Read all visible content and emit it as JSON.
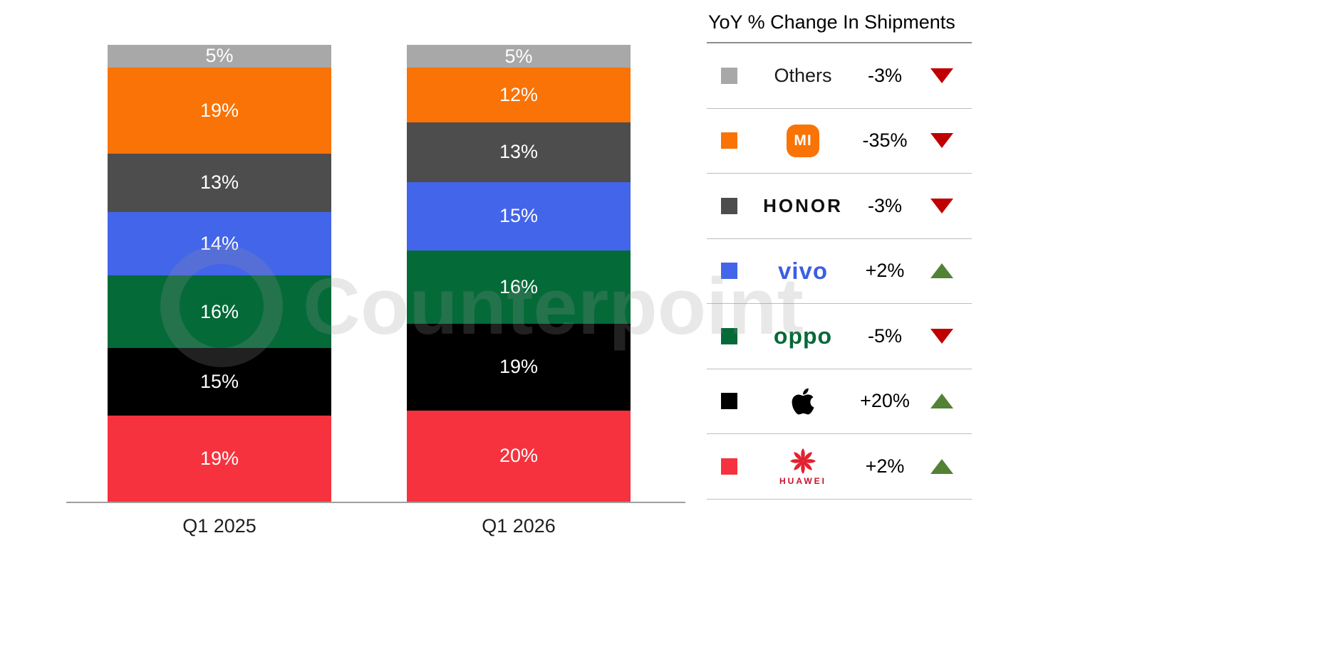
{
  "chart_data": {
    "type": "bar",
    "stacked": true,
    "title": "",
    "categories": [
      "Q1 2025",
      "Q1 2026"
    ],
    "series": [
      {
        "name": "HUAWEI",
        "color": "#f6323e",
        "values": [
          19,
          20
        ]
      },
      {
        "name": "Apple",
        "color": "#000000",
        "values": [
          15,
          19
        ]
      },
      {
        "name": "OPPO",
        "color": "#046a38",
        "values": [
          16,
          16
        ]
      },
      {
        "name": "vivo",
        "color": "#4365e9",
        "values": [
          14,
          15
        ]
      },
      {
        "name": "HONOR",
        "color": "#4d4d4d",
        "values": [
          13,
          13
        ]
      },
      {
        "name": "Xiaomi",
        "color": "#f97306",
        "values": [
          19,
          12
        ]
      },
      {
        "name": "Others",
        "color": "#a8a8a8",
        "values": [
          5,
          5
        ]
      }
    ],
    "value_suffix": "%",
    "legend_position": "right",
    "legend_title": "YoY % Change In Shipments",
    "legend": [
      {
        "brand": "Others",
        "logo": "others",
        "color": "#a8a8a8",
        "change": "-3%",
        "direction": "down"
      },
      {
        "brand": "Mi",
        "logo": "mi",
        "color": "#f97306",
        "change": "-35%",
        "direction": "down"
      },
      {
        "brand": "HONOR",
        "logo": "honor",
        "color": "#4d4d4d",
        "change": "-3%",
        "direction": "down"
      },
      {
        "brand": "vivo",
        "logo": "vivo",
        "color": "#4365e9",
        "change": "+2%",
        "direction": "up"
      },
      {
        "brand": "OPPO",
        "logo": "oppo",
        "color": "#046a38",
        "change": "-5%",
        "direction": "down"
      },
      {
        "brand": "Apple",
        "logo": "apple",
        "color": "#000000",
        "change": "+20%",
        "direction": "up"
      },
      {
        "brand": "HUAWEI",
        "logo": "huawei",
        "color": "#f6323e",
        "change": "+2%",
        "direction": "up"
      }
    ],
    "trend_colors": {
      "up": "#538135",
      "down": "#c00000"
    },
    "watermark": "Counterpoint",
    "mi_logo_text": "MI",
    "huawei_word": "HUAWEI",
    "vivo_word": "vivo",
    "oppo_word": "oppo",
    "honor_word": "HONOR"
  }
}
